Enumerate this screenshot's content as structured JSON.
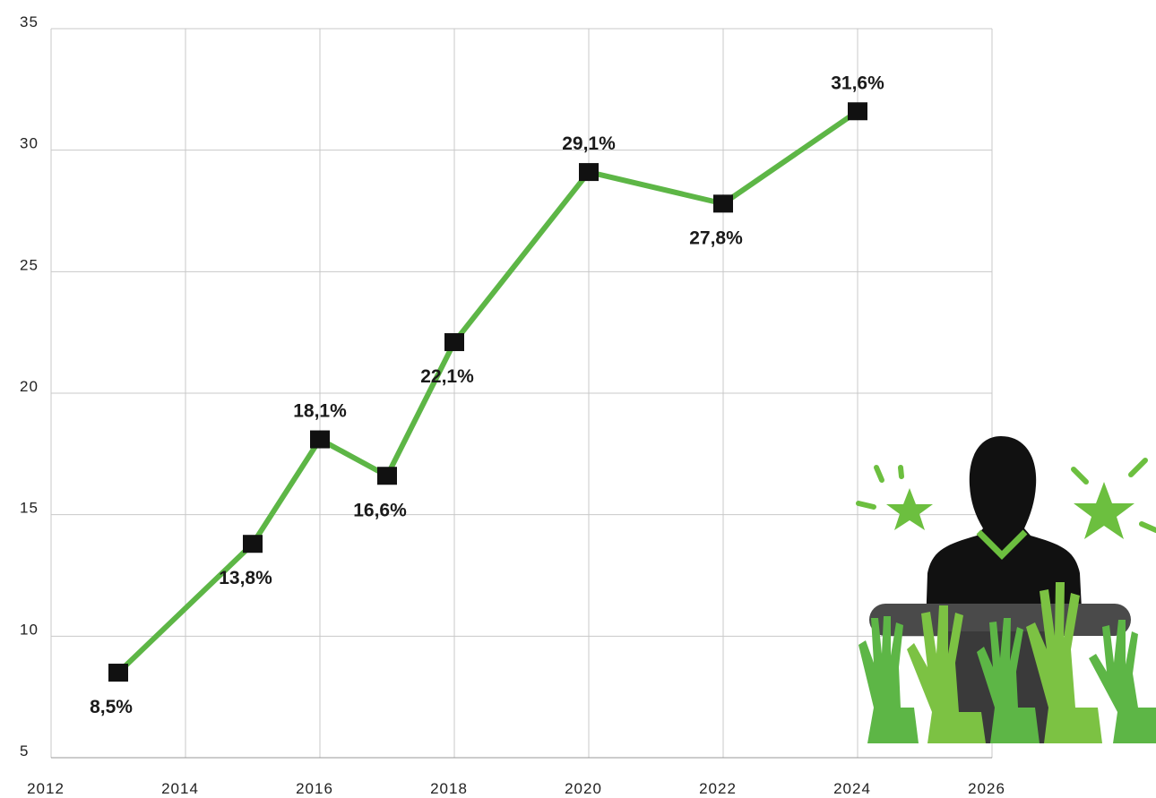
{
  "chart_data": {
    "type": "line",
    "x": [
      2013,
      2015,
      2016,
      2017,
      2018,
      2020,
      2022,
      2024
    ],
    "series": [
      {
        "color": "#5db646",
        "marker_color": "#111111",
        "values": [
          8.5,
          13.8,
          18.1,
          16.6,
          22.1,
          29.1,
          27.8,
          31.6
        ],
        "value_labels": [
          "8,5%",
          "13,8%",
          "18,1%",
          "16,6%",
          "22,1%",
          "29,1%",
          "27,8%",
          "31,6%"
        ]
      }
    ],
    "xlim": [
      2012,
      2026
    ],
    "xticks": [
      2012,
      2014,
      2016,
      2018,
      2020,
      2022,
      2024,
      2026
    ],
    "ylim": [
      5,
      35
    ],
    "yticks": [
      5,
      10,
      15,
      20,
      25,
      30,
      35
    ],
    "grid": true
  }
}
